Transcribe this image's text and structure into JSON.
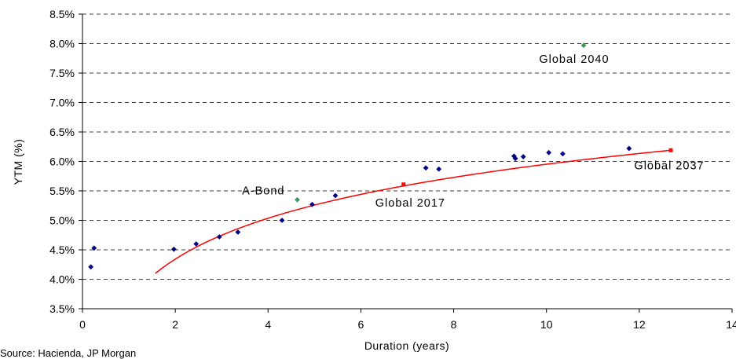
{
  "chart_data": {
    "type": "scatter",
    "title": "",
    "xlabel": "Duration (years)",
    "ylabel": "YTM (%)",
    "xlim": [
      0,
      14
    ],
    "ylim": [
      3.5,
      8.5
    ],
    "x_ticks": [
      0,
      2,
      4,
      6,
      8,
      10,
      12,
      14
    ],
    "y_ticks": [
      "3.5%",
      "4.0%",
      "4.5%",
      "5.0%",
      "5.5%",
      "6.0%",
      "6.5%",
      "7.0%",
      "7.5%",
      "8.0%",
      "8.5%"
    ],
    "grid": "horizontal dashed",
    "colors": {
      "bonds": "#000080",
      "highlight_green": "#3a9a5a",
      "highlight_red": "#ff0000",
      "fit_line": "#ff0000"
    },
    "series": [
      {
        "marker": "diamond",
        "color": "#000080",
        "points": [
          [
            0.18,
            4.21
          ],
          [
            0.25,
            4.53
          ],
          [
            1.97,
            4.51
          ],
          [
            2.45,
            4.6
          ],
          [
            2.95,
            4.72
          ],
          [
            3.35,
            4.8
          ],
          [
            4.3,
            5.0
          ],
          [
            4.95,
            5.27
          ],
          [
            5.45,
            5.42
          ],
          [
            7.4,
            5.89
          ],
          [
            7.68,
            5.87
          ],
          [
            9.3,
            6.09
          ],
          [
            9.33,
            6.05
          ],
          [
            9.5,
            6.08
          ],
          [
            10.05,
            6.15
          ],
          [
            10.35,
            6.13
          ],
          [
            11.78,
            6.22
          ]
        ]
      },
      {
        "marker": "diamond",
        "color": "#3a9a5a",
        "points": [
          [
            4.63,
            5.35
          ],
          [
            10.8,
            7.97
          ]
        ]
      },
      {
        "marker": "square",
        "color": "#ff0000",
        "points": [
          [
            6.92,
            5.61
          ],
          [
            12.68,
            6.19
          ]
        ]
      }
    ],
    "fit_line": {
      "type": "logarithmic",
      "x_range": [
        1.57,
        12.68
      ],
      "y_range": [
        4.1,
        6.19
      ],
      "color": "#ff0000"
    },
    "annotations": [
      {
        "text": "Global 2040",
        "x": 10.8,
        "y": 7.97
      },
      {
        "text": "A-Bond",
        "x": 4.63,
        "y": 5.35
      },
      {
        "text": "Global 2017",
        "x": 6.92,
        "y": 5.61
      },
      {
        "text": "Global 2037",
        "x": 12.68,
        "y": 6.19
      }
    ]
  },
  "footer": {
    "source": "Source: Hacienda, JP Morgan"
  }
}
